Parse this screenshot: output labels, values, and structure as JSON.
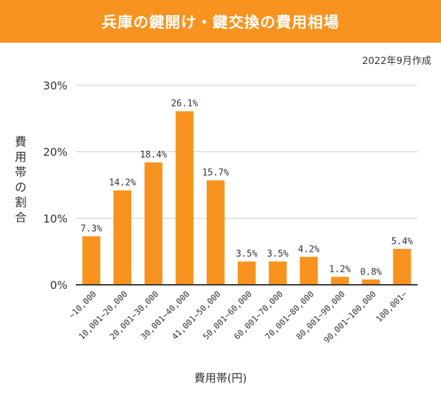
{
  "title": "兵庫の鍵開け・鍵交換の費用相場",
  "date_note": "2022年9月作成",
  "colors": {
    "header": "#f7931e",
    "bar": "#f7931e",
    "grid": "#cccccc",
    "axis": "#333333"
  },
  "chart_data": {
    "type": "bar",
    "title": "",
    "xlabel": "費用帯(円)",
    "ylabel": "費用帯の割合",
    "ylim": [
      0,
      30
    ],
    "yticks": [
      "0%",
      "10%",
      "20%",
      "30%"
    ],
    "grid": true,
    "categories": [
      "~10,000",
      "10,001~20,000",
      "20,001~30,000",
      "30,001~40,000",
      "41,001~50,000",
      "50,001~60,000",
      "60,001~70,000",
      "70,001~80,000",
      "80,001~90,000",
      "90,001~100,000",
      "100,001~"
    ],
    "values": [
      7.3,
      14.2,
      18.4,
      26.1,
      15.7,
      3.5,
      3.5,
      4.2,
      1.2,
      0.8,
      5.4
    ],
    "value_labels": [
      "7.3%",
      "14.2%",
      "18.4%",
      "26.1%",
      "15.7%",
      "3.5%",
      "3.5%",
      "4.2%",
      "1.2%",
      "0.8%",
      "5.4%"
    ]
  }
}
